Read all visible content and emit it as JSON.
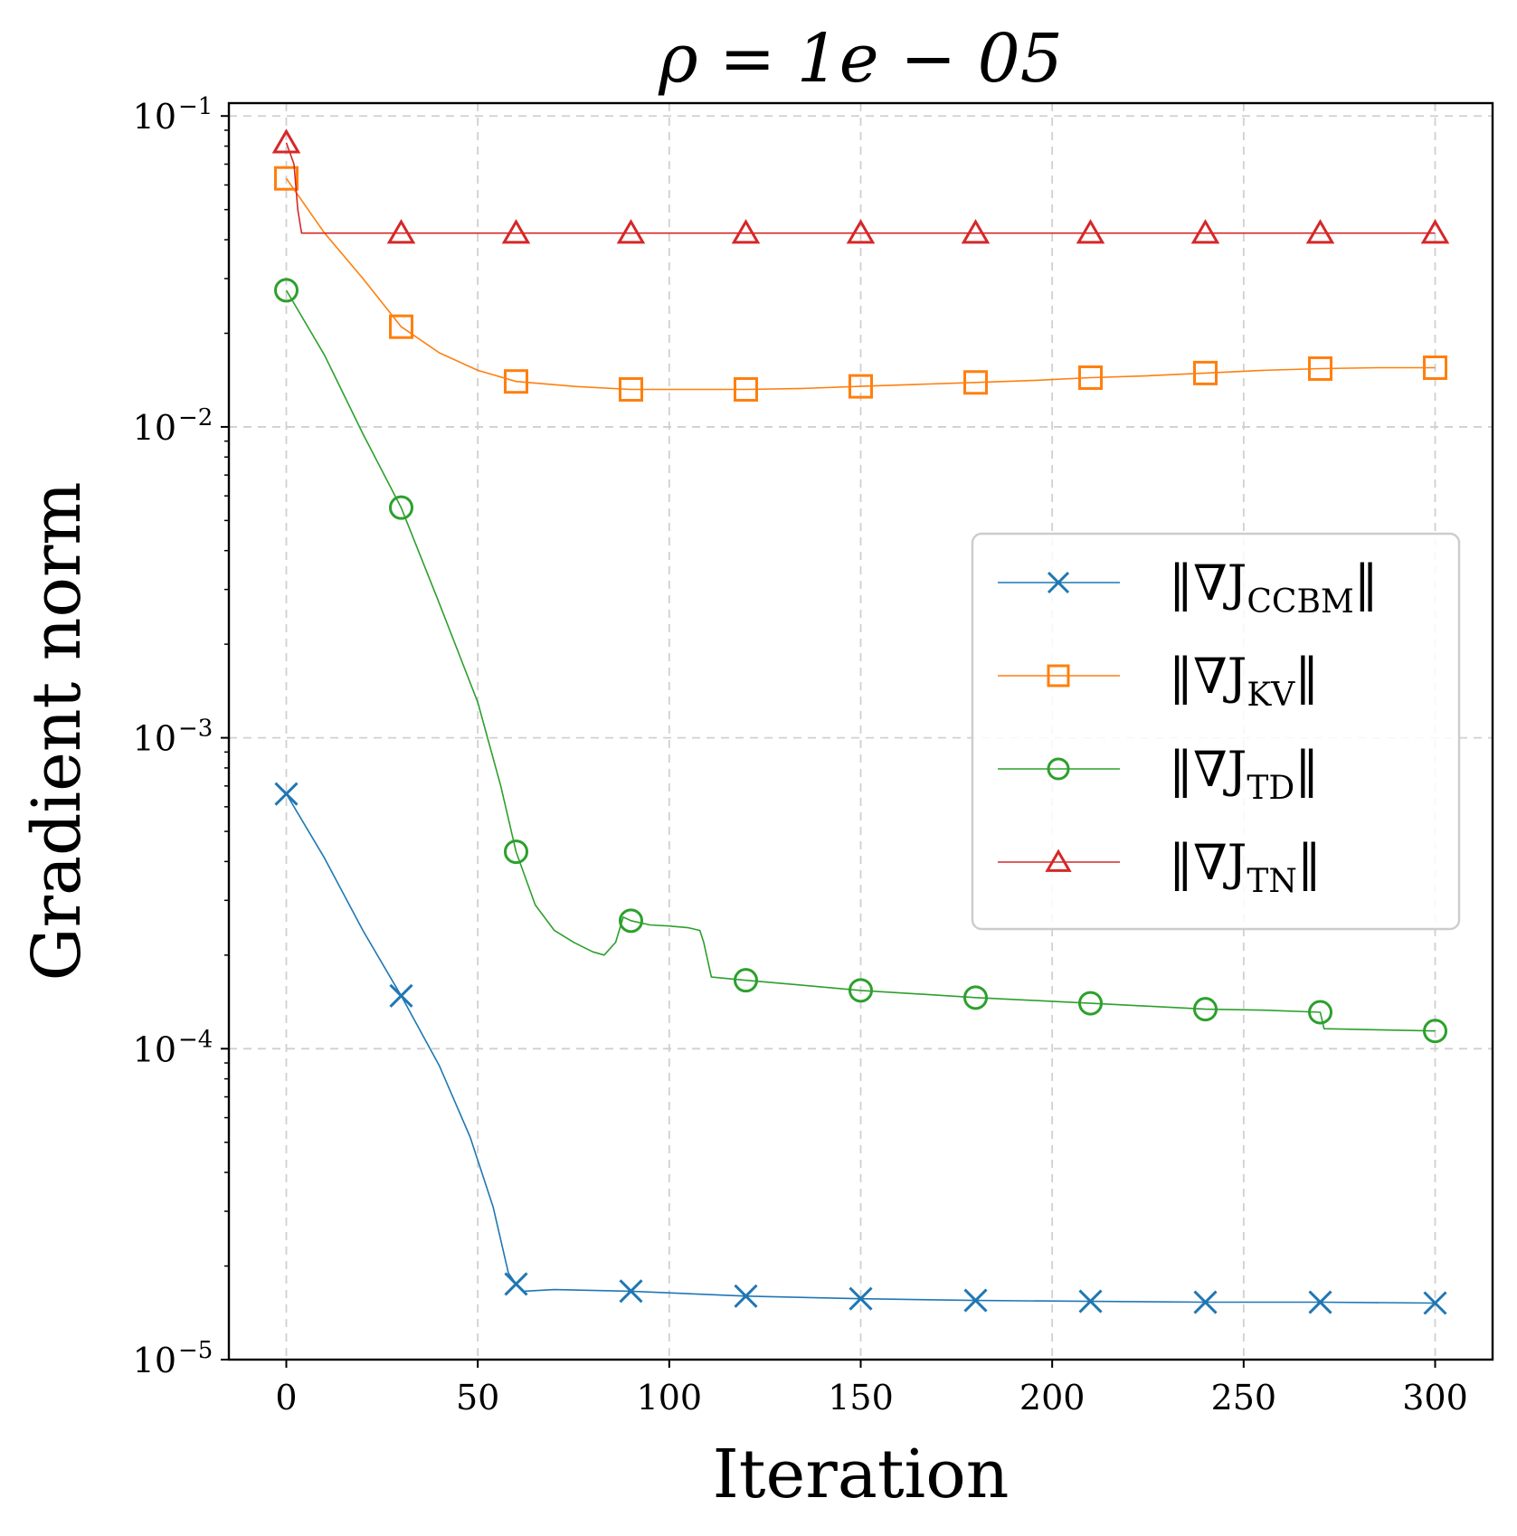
{
  "chart_data": {
    "type": "line",
    "title": "ρ = 1e − 05",
    "xlabel": "Iteration",
    "ylabel": "Gradient norm",
    "xlim": [
      -15,
      315
    ],
    "ylim": [
      1e-05,
      0.11
    ],
    "yscale": "log",
    "grid": true,
    "legend_position": "center-right",
    "x_ticks": [
      0,
      50,
      100,
      150,
      200,
      250,
      300
    ],
    "y_ticks": [
      {
        "value": 0.1,
        "base": "10",
        "exp": "−1"
      },
      {
        "value": 0.01,
        "base": "10",
        "exp": "−2"
      },
      {
        "value": 0.001,
        "base": "10",
        "exp": "−3"
      },
      {
        "value": 0.0001,
        "base": "10",
        "exp": "−4"
      },
      {
        "value": 1e-05,
        "base": "10",
        "exp": "−5"
      }
    ],
    "series": [
      {
        "name": "CCBM",
        "legend_main": "‖∇J",
        "legend_sub": "CCBM",
        "legend_end": "‖",
        "color": "#1f77b4",
        "marker": "x",
        "marker_x": [
          0,
          30,
          60,
          90,
          120,
          150,
          180,
          210,
          240,
          270,
          300
        ],
        "marker_y": [
          0.00066,
          0.000148,
          1.75e-05,
          1.66e-05,
          1.6e-05,
          1.57e-05,
          1.55e-05,
          1.54e-05,
          1.53e-05,
          1.53e-05,
          1.52e-05
        ],
        "line_x": [
          0,
          10,
          20,
          30,
          40,
          48,
          54,
          58,
          60,
          62,
          70,
          90,
          120,
          150,
          180,
          210,
          240,
          270,
          300
        ],
        "line_y": [
          0.00066,
          0.00041,
          0.00024,
          0.000148,
          8.8e-05,
          5.2e-05,
          3.1e-05,
          1.9e-05,
          1.75e-05,
          1.66e-05,
          1.68e-05,
          1.66e-05,
          1.6e-05,
          1.57e-05,
          1.55e-05,
          1.54e-05,
          1.53e-05,
          1.53e-05,
          1.52e-05
        ]
      },
      {
        "name": "KV",
        "legend_main": "‖∇J",
        "legend_sub": "KV",
        "legend_end": "‖",
        "color": "#ff7f0e",
        "marker": "square",
        "marker_x": [
          0,
          30,
          60,
          90,
          120,
          150,
          180,
          210,
          240,
          270,
          300
        ],
        "marker_y": [
          0.063,
          0.021,
          0.014,
          0.0132,
          0.0132,
          0.0135,
          0.0139,
          0.0144,
          0.0149,
          0.0154,
          0.0155
        ],
        "line_x": [
          0,
          10,
          20,
          30,
          40,
          50,
          60,
          75,
          90,
          105,
          120,
          135,
          150,
          165,
          180,
          195,
          210,
          225,
          240,
          255,
          270,
          285,
          300
        ],
        "line_y": [
          0.063,
          0.042,
          0.03,
          0.021,
          0.0173,
          0.0152,
          0.014,
          0.0135,
          0.0132,
          0.0132,
          0.0132,
          0.0133,
          0.0135,
          0.0137,
          0.0139,
          0.0141,
          0.0144,
          0.0146,
          0.0149,
          0.0152,
          0.0154,
          0.0155,
          0.0155
        ]
      },
      {
        "name": "TD",
        "legend_main": "‖∇J",
        "legend_sub": "TD",
        "legend_end": "‖",
        "color": "#2ca02c",
        "marker": "circle",
        "marker_x": [
          0,
          30,
          60,
          90,
          120,
          150,
          180,
          210,
          240,
          270,
          300
        ],
        "marker_y": [
          0.0275,
          0.0055,
          0.00043,
          0.000258,
          0.000166,
          0.000154,
          0.000146,
          0.00014,
          0.000134,
          0.000131,
          0.000114
        ],
        "line_x": [
          0,
          10,
          20,
          30,
          40,
          50,
          56,
          60,
          65,
          70,
          75,
          80,
          83,
          86,
          88,
          90,
          95,
          100,
          105,
          108,
          109,
          111,
          120,
          135,
          150,
          165,
          180,
          195,
          210,
          225,
          240,
          255,
          270,
          271,
          285,
          300
        ],
        "line_y": [
          0.0275,
          0.017,
          0.0095,
          0.0055,
          0.0027,
          0.0013,
          0.0007,
          0.00043,
          0.00029,
          0.00024,
          0.00022,
          0.000205,
          0.0002,
          0.00022,
          0.000265,
          0.000258,
          0.00025,
          0.000248,
          0.000245,
          0.00024,
          0.00022,
          0.00017,
          0.000166,
          0.00016,
          0.000154,
          0.00015,
          0.000146,
          0.000143,
          0.00014,
          0.000137,
          0.000134,
          0.000133,
          0.000131,
          0.000116,
          0.000115,
          0.000114
        ]
      },
      {
        "name": "TN",
        "legend_main": "‖∇J",
        "legend_sub": "TN",
        "legend_end": "‖",
        "color": "#d62728",
        "marker": "triangle",
        "marker_x": [
          0,
          30,
          60,
          90,
          120,
          150,
          180,
          210,
          240,
          270,
          300
        ],
        "marker_y": [
          0.082,
          0.042,
          0.042,
          0.042,
          0.042,
          0.042,
          0.042,
          0.042,
          0.042,
          0.042,
          0.042
        ],
        "line_x": [
          0,
          2,
          3,
          4,
          30,
          60,
          90,
          120,
          150,
          180,
          210,
          240,
          270,
          300
        ],
        "line_y": [
          0.082,
          0.07,
          0.05,
          0.042,
          0.042,
          0.042,
          0.042,
          0.042,
          0.042,
          0.042,
          0.042,
          0.042,
          0.042,
          0.042
        ]
      }
    ]
  }
}
